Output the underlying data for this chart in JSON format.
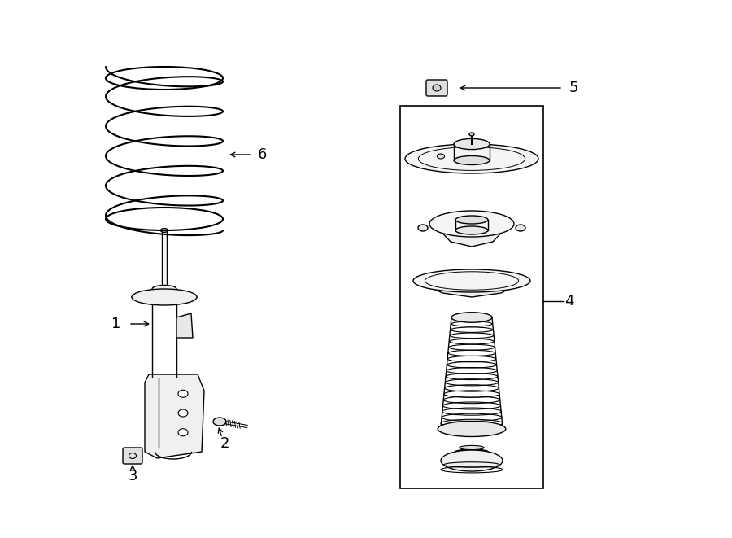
{
  "bg_color": "#ffffff",
  "line_color": "#000000",
  "lw": 1.0,
  "fig_w": 9.0,
  "fig_h": 6.61,
  "dpi": 100
}
